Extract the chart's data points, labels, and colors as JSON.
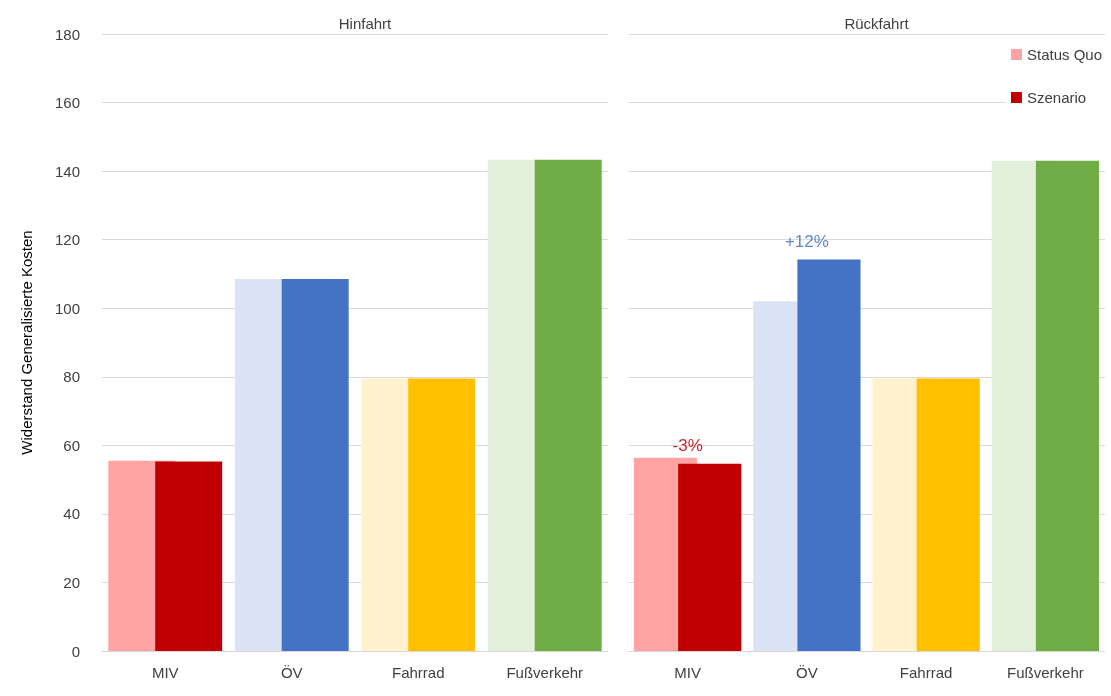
{
  "chart_data": [
    {
      "type": "bar",
      "title": "Hinfahrt",
      "ylabel": "Widerstand Generalisierte Kosten",
      "categories": [
        "MIV",
        "ÖV",
        "Fahrrad",
        "Fußverkehr"
      ],
      "series": [
        {
          "color": "#ffa3a3",
          "colors": [
            "#ffa3a3",
            "#dae3f3",
            "#fff2cc",
            "#e2efda"
          ],
          "values": [
            55.5,
            108.5,
            79.5,
            143.3
          ]
        },
        {
          "color": "#c00000",
          "colors": [
            "#c00000",
            "#4472c4",
            "#ffc000",
            "#70ad47"
          ],
          "values": [
            55.3,
            108.5,
            79.5,
            143.3
          ]
        }
      ],
      "ylim": [
        0,
        180
      ],
      "yticks": [
        0,
        20,
        40,
        60,
        80,
        100,
        120,
        140,
        160,
        180
      ],
      "grid": "y",
      "legend": false
    },
    {
      "type": "bar",
      "title": "Rückfahrt",
      "categories": [
        "MIV",
        "ÖV",
        "Fahrrad",
        "Fußverkehr"
      ],
      "series": [
        {
          "name": "Status Quo",
          "color": "#ffa3a3",
          "colors": [
            "#ffa3a3",
            "#dae3f3",
            "#fff2cc",
            "#e2efda"
          ],
          "values": [
            56.4,
            102,
            79.5,
            143
          ]
        },
        {
          "name": "Szenario",
          "color": "#c00000",
          "colors": [
            "#c00000",
            "#4472c4",
            "#ffc000",
            "#70ad47"
          ],
          "values": [
            54.6,
            114.2,
            79.5,
            143
          ]
        }
      ],
      "annotations": [
        {
          "text": "-3%",
          "x": "MIV",
          "y": 54.6
        },
        {
          "text": "+12%",
          "x": "ÖV",
          "y": 114.2
        }
      ],
      "ylim": [
        0,
        180
      ],
      "yticks": [
        0,
        20,
        40,
        60,
        80,
        100,
        120,
        140,
        160,
        180
      ],
      "grid": "y",
      "tick_labels": "x",
      "legend": "top right"
    }
  ]
}
